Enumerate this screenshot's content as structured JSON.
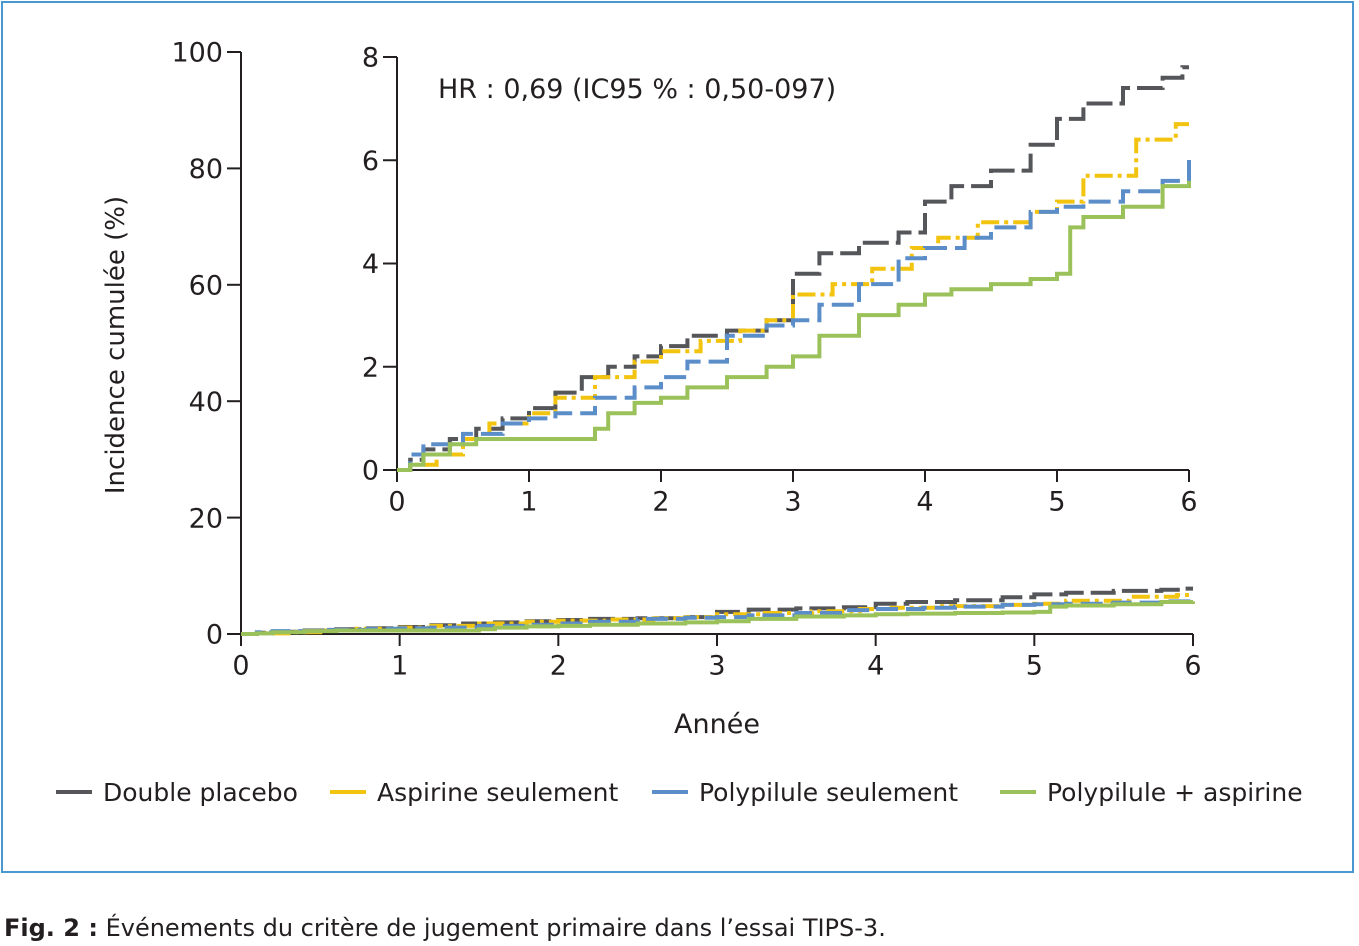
{
  "caption": {
    "label": "Fig. 2 :",
    "text": "Événements du critère de jugement primaire dans l’essai TIPS-3."
  },
  "colors": {
    "frame": "#4a98d0",
    "axis": "#231f20"
  },
  "chart_data": [
    {
      "type": "line",
      "role": "main",
      "title": "",
      "xlabel": "Année",
      "ylabel": "Incidence cumulée (%)",
      "xlim": [
        0,
        6
      ],
      "ylim": [
        0,
        100
      ],
      "x_ticks": [
        "0",
        "1",
        "2",
        "3",
        "4",
        "5",
        "6"
      ],
      "y_ticks": [
        "0",
        "20",
        "40",
        "60",
        "80",
        "100"
      ],
      "grid": false,
      "legend_position": "bottom",
      "series_ref": "shared"
    },
    {
      "type": "line",
      "role": "inset",
      "annotation": "HR : 0,69 (IC95 % : 0,50-097)",
      "xlim": [
        0,
        6
      ],
      "ylim": [
        0,
        8
      ],
      "x_ticks": [
        "0",
        "1",
        "2",
        "3",
        "4",
        "5",
        "6"
      ],
      "y_ticks": [
        "0",
        "2",
        "4",
        "6",
        "8"
      ],
      "grid": false,
      "series_ref": "shared"
    }
  ],
  "series": [
    {
      "name": "Double placebo",
      "color": "#55565a",
      "dash": "long-dash",
      "x": [
        0,
        0.1,
        0.2,
        0.4,
        0.6,
        0.8,
        1.0,
        1.2,
        1.4,
        1.6,
        1.8,
        2.0,
        2.2,
        2.5,
        2.8,
        3.0,
        3.2,
        3.5,
        3.8,
        4.0,
        4.2,
        4.5,
        4.8,
        5.0,
        5.2,
        5.5,
        5.8,
        5.95
      ],
      "y": [
        0,
        0.2,
        0.4,
        0.6,
        0.8,
        1.0,
        1.2,
        1.5,
        1.8,
        2.0,
        2.2,
        2.4,
        2.6,
        2.7,
        2.9,
        3.8,
        4.2,
        4.4,
        4.6,
        5.2,
        5.5,
        5.8,
        6.3,
        6.8,
        7.1,
        7.4,
        7.6,
        7.8
      ]
    },
    {
      "name": "Aspirine seulement",
      "color": "#f2c40f",
      "dash": "dash-dot",
      "x": [
        0,
        0.1,
        0.3,
        0.5,
        0.7,
        1.0,
        1.2,
        1.5,
        1.8,
        2.0,
        2.3,
        2.6,
        2.8,
        3.0,
        3.3,
        3.6,
        3.9,
        4.1,
        4.4,
        4.8,
        5.0,
        5.2,
        5.5,
        5.6,
        5.9
      ],
      "y": [
        0,
        0.1,
        0.3,
        0.6,
        0.9,
        1.1,
        1.4,
        1.8,
        2.1,
        2.3,
        2.5,
        2.7,
        2.9,
        3.4,
        3.6,
        3.9,
        4.3,
        4.5,
        4.8,
        5.0,
        5.2,
        5.7,
        5.7,
        6.4,
        6.7
      ]
    },
    {
      "name": "Polypilule seulement",
      "color": "#5b8ec9",
      "dash": "dash",
      "x": [
        0,
        0.1,
        0.2,
        0.5,
        0.8,
        1.0,
        1.2,
        1.5,
        1.8,
        2.0,
        2.2,
        2.5,
        2.8,
        3.0,
        3.2,
        3.5,
        3.8,
        4.0,
        4.3,
        4.5,
        4.8,
        5.0,
        5.2,
        5.5,
        5.8,
        6.0
      ],
      "y": [
        0,
        0.3,
        0.5,
        0.7,
        0.9,
        1.0,
        1.1,
        1.4,
        1.6,
        1.8,
        2.1,
        2.6,
        2.8,
        2.9,
        3.2,
        3.6,
        4.1,
        4.3,
        4.5,
        4.7,
        5.0,
        5.1,
        5.2,
        5.4,
        5.6,
        6.1
      ]
    },
    {
      "name": "Polypilule + aspirine",
      "color": "#9bc25a",
      "dash": "solid",
      "x": [
        0,
        0.1,
        0.2,
        0.4,
        0.6,
        0.8,
        1.0,
        1.2,
        1.4,
        1.5,
        1.6,
        1.8,
        2.0,
        2.2,
        2.5,
        2.8,
        3.0,
        3.2,
        3.5,
        3.8,
        4.0,
        4.2,
        4.5,
        4.8,
        5.0,
        5.1,
        5.2,
        5.5,
        5.8,
        6.0
      ],
      "y": [
        0,
        0.1,
        0.3,
        0.5,
        0.6,
        0.6,
        0.6,
        0.6,
        0.6,
        0.8,
        1.1,
        1.3,
        1.4,
        1.6,
        1.8,
        2.0,
        2.2,
        2.6,
        3.0,
        3.2,
        3.4,
        3.5,
        3.6,
        3.7,
        3.8,
        4.7,
        4.9,
        5.1,
        5.5,
        5.6
      ]
    }
  ]
}
